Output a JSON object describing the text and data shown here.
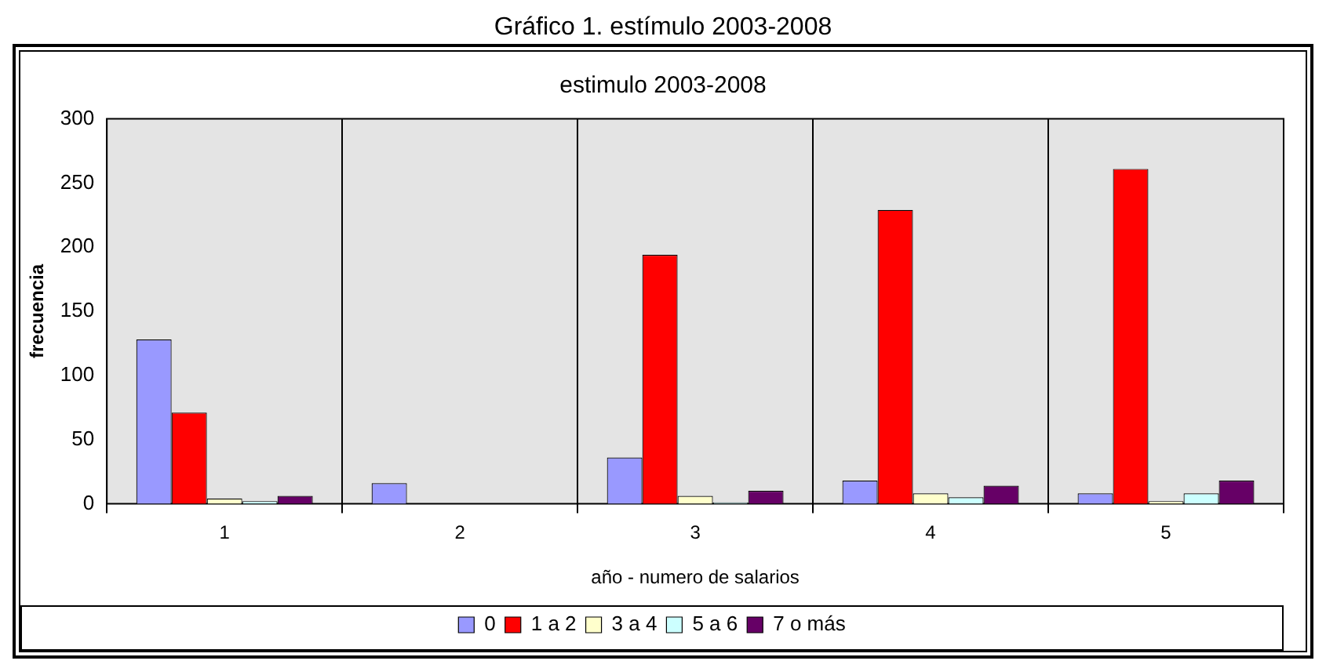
{
  "chart_data": {
    "type": "bar",
    "title": "Gráfico 1. estímulo 2003-2008",
    "subtitle": "estimulo 2003-2008",
    "xlabel": "año - numero de salarios",
    "ylabel": "frecuencia",
    "categories": [
      "1",
      "2",
      "3",
      "4",
      "5"
    ],
    "series": [
      {
        "name": "0",
        "color": "#9999ff",
        "values": [
          128,
          16,
          36,
          18,
          8
        ]
      },
      {
        "name": "1 a 2",
        "color": "#ff0000",
        "values": [
          71,
          0,
          194,
          229,
          261
        ]
      },
      {
        "name": "3 a 4",
        "color": "#ffffcc",
        "values": [
          4,
          0,
          6,
          8,
          2
        ]
      },
      {
        "name": "5 a 6",
        "color": "#ccffff",
        "values": [
          2,
          0,
          1,
          5,
          8
        ]
      },
      {
        "name": "7 o más",
        "color": "#660066",
        "values": [
          6,
          0,
          10,
          14,
          18
        ]
      }
    ],
    "ylim": [
      0,
      300
    ],
    "yticks": [
      0,
      50,
      100,
      150,
      200,
      250,
      300
    ],
    "grid": "x",
    "legend": "bottom"
  }
}
